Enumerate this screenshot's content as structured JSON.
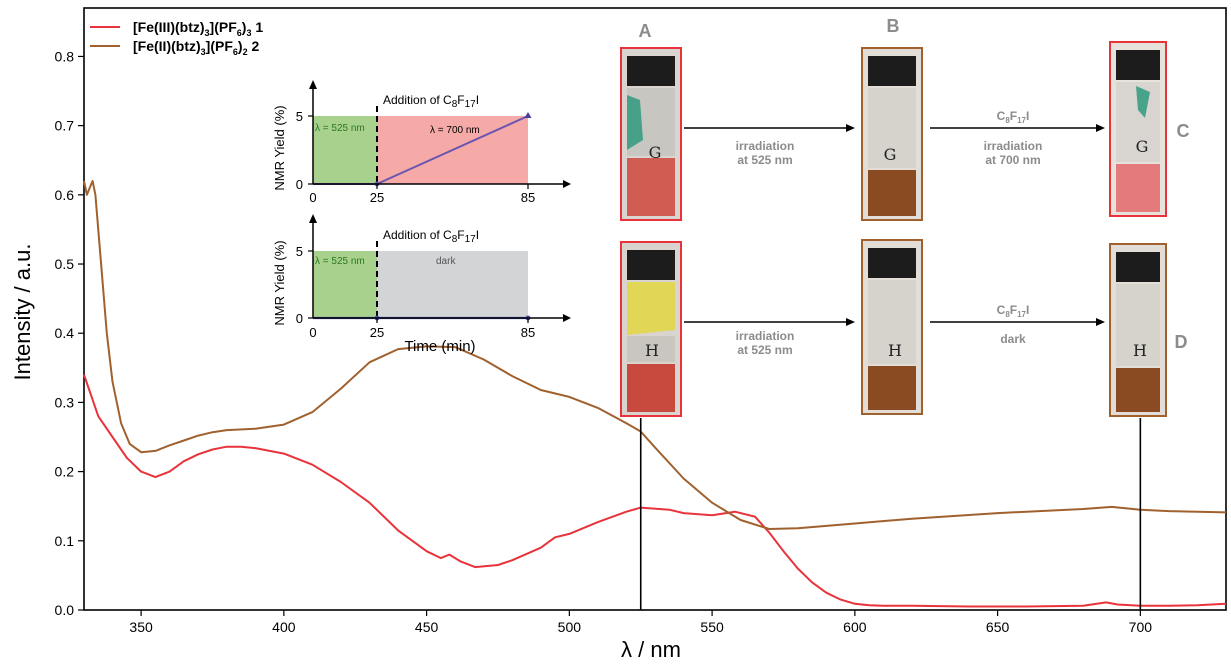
{
  "chart_data": {
    "type": "line",
    "xlabel": "λ  / nm",
    "ylabel": "Intensity / a.u.",
    "xlim": [
      330,
      730
    ],
    "ylim": [
      0.0,
      0.87
    ],
    "x_ticks": [
      350,
      400,
      450,
      500,
      550,
      600,
      650,
      700
    ],
    "y_ticks": [
      0.0,
      0.1,
      0.2,
      0.3,
      0.4,
      0.5,
      0.6,
      0.7,
      0.8
    ],
    "legend": {
      "position": "top-left",
      "entries": [
        {
          "main": "[Fe(III)(btz)",
          "sub1": "3",
          "mid": "](PF",
          "sub2": "6",
          "close": ")",
          "sub3": "3",
          "tail": " 1",
          "color": "#e8333b"
        },
        {
          "main": "[Fe(II)(btz)",
          "sub1": "3",
          "mid": "](PF",
          "sub2": "6",
          "close": ")",
          "sub3": "2",
          "tail": " 2",
          "color": "#a0612e"
        }
      ]
    },
    "series": [
      {
        "name": "[Fe(III)(btz)3](PF6)3 1",
        "color": "#e8333b",
        "x": [
          330,
          335,
          340,
          345,
          350,
          355,
          360,
          365,
          370,
          375,
          380,
          385,
          390,
          400,
          410,
          420,
          430,
          440,
          450,
          455,
          458,
          462,
          467,
          475,
          480,
          490,
          495,
          500,
          510,
          520,
          525,
          535,
          540,
          550,
          558,
          565,
          570,
          575,
          580,
          585,
          590,
          595,
          600,
          605,
          610,
          620,
          640,
          660,
          680,
          688,
          692,
          700,
          710,
          720,
          730
        ],
        "y": [
          0.34,
          0.28,
          0.25,
          0.22,
          0.2,
          0.192,
          0.2,
          0.215,
          0.225,
          0.232,
          0.236,
          0.236,
          0.234,
          0.226,
          0.21,
          0.185,
          0.155,
          0.115,
          0.085,
          0.075,
          0.08,
          0.07,
          0.062,
          0.065,
          0.072,
          0.09,
          0.105,
          0.11,
          0.127,
          0.142,
          0.148,
          0.145,
          0.14,
          0.137,
          0.142,
          0.135,
          0.112,
          0.085,
          0.06,
          0.04,
          0.025,
          0.015,
          0.009,
          0.007,
          0.006,
          0.006,
          0.005,
          0.005,
          0.006,
          0.011,
          0.008,
          0.006,
          0.006,
          0.007,
          0.009
        ]
      },
      {
        "name": "[Fe(II)(btz)3](PF6)2 2",
        "color": "#a0612e",
        "x": [
          330,
          331,
          332,
          333,
          334,
          336,
          338,
          340,
          343,
          346,
          350,
          355,
          360,
          365,
          370,
          375,
          380,
          390,
          400,
          410,
          420,
          430,
          440,
          450,
          460,
          470,
          480,
          490,
          500,
          510,
          520,
          525,
          530,
          540,
          550,
          560,
          570,
          580,
          600,
          620,
          650,
          680,
          690,
          700,
          710,
          720,
          730
        ],
        "y": [
          0.62,
          0.6,
          0.61,
          0.62,
          0.6,
          0.5,
          0.4,
          0.33,
          0.27,
          0.24,
          0.228,
          0.23,
          0.238,
          0.245,
          0.252,
          0.257,
          0.26,
          0.262,
          0.268,
          0.286,
          0.32,
          0.358,
          0.377,
          0.381,
          0.38,
          0.362,
          0.338,
          0.318,
          0.308,
          0.292,
          0.27,
          0.258,
          0.235,
          0.19,
          0.155,
          0.13,
          0.117,
          0.118,
          0.125,
          0.132,
          0.14,
          0.146,
          0.149,
          0.145,
          0.143,
          0.142,
          0.141
        ]
      }
    ],
    "marker_lines": [
      525,
      700
    ]
  },
  "insets": {
    "top": {
      "ylabel": "NMR Yield (%)",
      "addition_prefix": "Addition of C",
      "addition_sub1": "8",
      "addition_mid": "F",
      "addition_sub2": "17",
      "addition_suffix": "I",
      "green_label": "λ = 525 nm",
      "right_label": "λ = 700 nm",
      "x_ticks": [
        "0",
        "25",
        "85"
      ],
      "y_ticks": [
        "0",
        "5"
      ],
      "yield_start": 0,
      "yield_end": 5,
      "colors": {
        "green": "#a8d18d",
        "right": "#f5aaa8",
        "line": "#6a55b0"
      }
    },
    "bottom": {
      "ylabel": "NMR Yield (%)",
      "addition_prefix": "Addition of C",
      "addition_sub1": "8",
      "addition_mid": "F",
      "addition_sub2": "17",
      "addition_suffix": "I",
      "green_label": "λ = 525 nm",
      "right_label": "dark",
      "x_ticks": [
        "0",
        "25",
        "85"
      ],
      "y_ticks": [
        "0",
        "5"
      ],
      "yield_start": 0,
      "yield_end": 0,
      "xlabel": "Time (min)",
      "colors": {
        "green": "#a8d18d",
        "right": "#d2d4d6",
        "line": "#4a4fb0"
      }
    }
  },
  "photos": {
    "labels": {
      "a": "A",
      "b": "B",
      "c": "C",
      "d": "D"
    },
    "vial_letters": {
      "top": "G",
      "bottom": "H"
    },
    "arrows": {
      "irradiation_line1": "irradiation",
      "irradiation_line2": "at 525 nm",
      "reagent_prefix": "C",
      "reagent_sub1": "8",
      "reagent_mid": "F",
      "reagent_sub2": "17",
      "reagent_suffix": "I",
      "top_right_line1": "irradiation",
      "top_right_line2": "at 700 nm",
      "bottom_right_line1": "dark"
    },
    "colors": {
      "red_frame": "#e8333b",
      "brown_frame": "#a0612e"
    }
  }
}
